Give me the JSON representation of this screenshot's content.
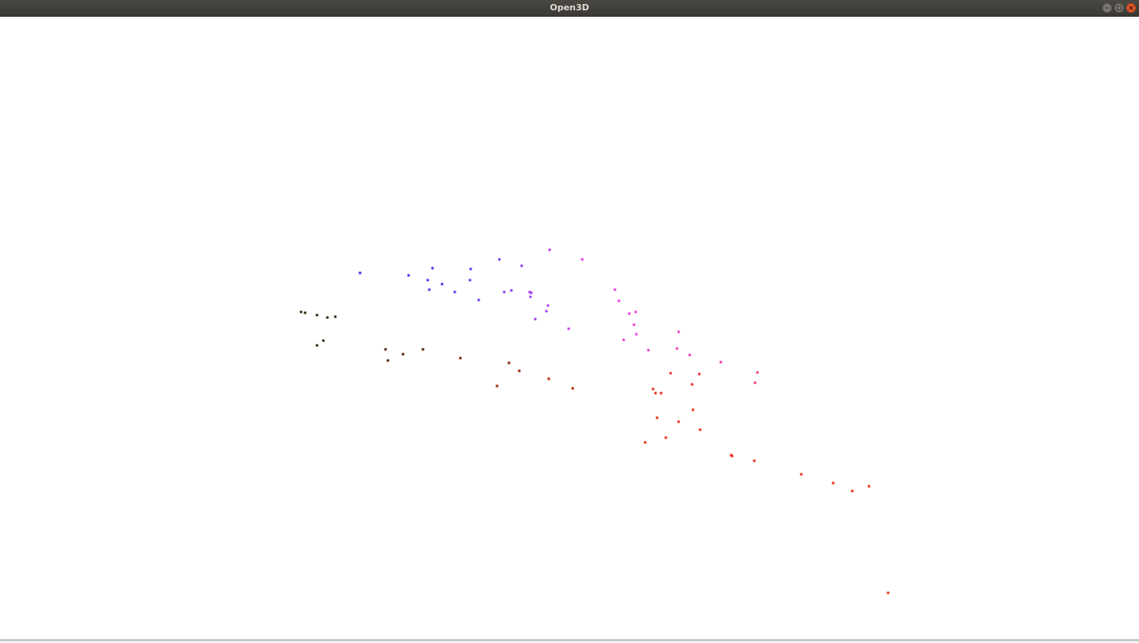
{
  "window": {
    "title": "Open3D",
    "controls": [
      {
        "name": "minimize-button",
        "icon": "minimize-icon"
      },
      {
        "name": "maximize-button",
        "icon": "maximize-icon"
      },
      {
        "name": "close-button",
        "icon": "close-icon"
      }
    ]
  },
  "colors": {
    "background": "#ffffff",
    "titlebar": "#3f3e39",
    "close_button": "#e9592b"
  }
}
